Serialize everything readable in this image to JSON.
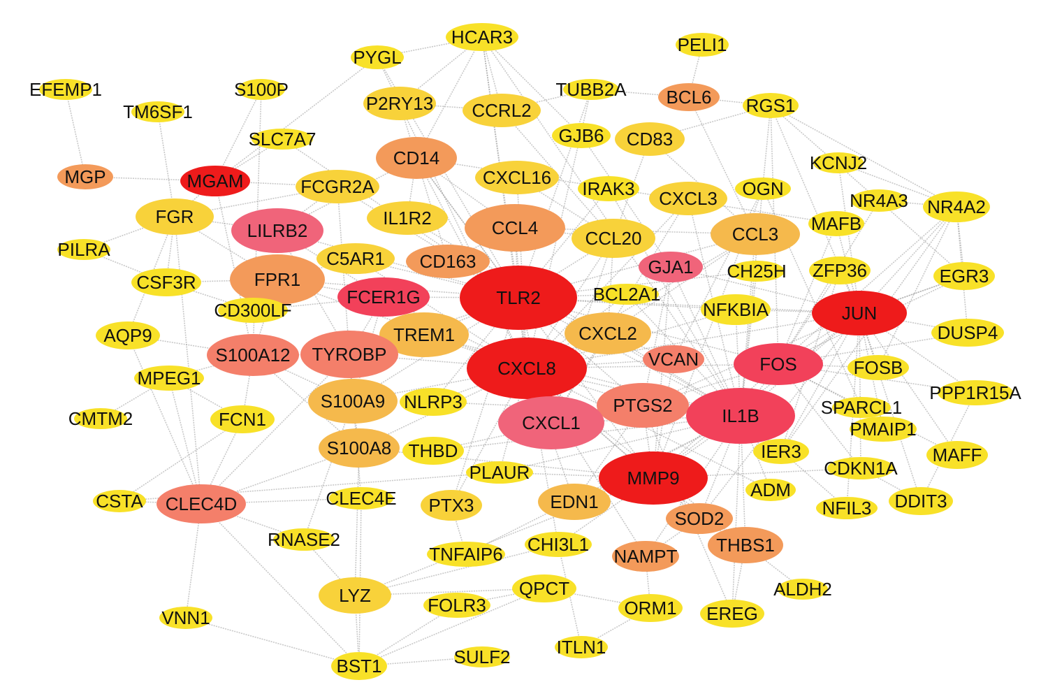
{
  "palette": {
    "level1": "#ee1b1b",
    "level2": "#f2415a",
    "level3": "#f0647a",
    "level4": "#f47f6a",
    "level5": "#f39a5a",
    "level6": "#f5b94c",
    "level7": "#f8d23a",
    "level8": "#f8e128",
    "edge": "#9a9a9a"
  },
  "nodes": [
    {
      "id": "HCAR3",
      "label": "HCAR3",
      "level": 8
    },
    {
      "id": "PELI1",
      "label": "PELI1",
      "level": 8
    },
    {
      "id": "PYGL",
      "label": "PYGL",
      "level": 8
    },
    {
      "id": "EFEMP1",
      "label": "EFEMP1",
      "level": 8
    },
    {
      "id": "S100P",
      "label": "S100P",
      "level": 8
    },
    {
      "id": "TUBB2A",
      "label": "TUBB2A",
      "level": 8
    },
    {
      "id": "BCL6",
      "label": "BCL6",
      "level": 5
    },
    {
      "id": "TM6SF1",
      "label": "TM6SF1",
      "level": 8
    },
    {
      "id": "P2RY13",
      "label": "P2RY13",
      "level": 7
    },
    {
      "id": "CCRL2",
      "label": "CCRL2",
      "level": 7
    },
    {
      "id": "RGS1",
      "label": "RGS1",
      "level": 8
    },
    {
      "id": "SLC7A7",
      "label": "SLC7A7",
      "level": 8
    },
    {
      "id": "GJB6",
      "label": "GJB6",
      "level": 8
    },
    {
      "id": "CD83",
      "label": "CD83",
      "level": 7
    },
    {
      "id": "CD14",
      "label": "CD14",
      "level": 5
    },
    {
      "id": "KCNJ2",
      "label": "KCNJ2",
      "level": 8
    },
    {
      "id": "MGP",
      "label": "MGP",
      "level": 5
    },
    {
      "id": "MGAM",
      "label": "MGAM",
      "level": 1
    },
    {
      "id": "CXCL16",
      "label": "CXCL16",
      "level": 7
    },
    {
      "id": "FCGR2A",
      "label": "FCGR2A",
      "level": 7
    },
    {
      "id": "IRAK3",
      "label": "IRAK3",
      "level": 8
    },
    {
      "id": "CXCL3",
      "label": "CXCL3",
      "level": 7
    },
    {
      "id": "OGN",
      "label": "OGN",
      "level": 8
    },
    {
      "id": "NR4A3",
      "label": "NR4A3",
      "level": 8
    },
    {
      "id": "NR4A2",
      "label": "NR4A2",
      "level": 8
    },
    {
      "id": "FGR",
      "label": "FGR",
      "level": 7
    },
    {
      "id": "IL1R2",
      "label": "IL1R2",
      "level": 7
    },
    {
      "id": "CCL4",
      "label": "CCL4",
      "level": 5
    },
    {
      "id": "LILRB2",
      "label": "LILRB2",
      "level": 3
    },
    {
      "id": "CCL3",
      "label": "CCL3",
      "level": 6
    },
    {
      "id": "MAFB",
      "label": "MAFB",
      "level": 8
    },
    {
      "id": "CCL20",
      "label": "CCL20",
      "level": 7
    },
    {
      "id": "PILRA",
      "label": "PILRA",
      "level": 8
    },
    {
      "id": "C5AR1",
      "label": "C5AR1",
      "level": 7
    },
    {
      "id": "CD163",
      "label": "CD163",
      "level": 5
    },
    {
      "id": "GJA1",
      "label": "GJA1",
      "level": 3
    },
    {
      "id": "CH25H",
      "label": "CH25H",
      "level": 8
    },
    {
      "id": "ZFP36",
      "label": "ZFP36",
      "level": 8
    },
    {
      "id": "EGR3",
      "label": "EGR3",
      "level": 8
    },
    {
      "id": "FPR1",
      "label": "FPR1",
      "level": 5
    },
    {
      "id": "CSF3R",
      "label": "CSF3R",
      "level": 8
    },
    {
      "id": "FCER1G",
      "label": "FCER1G",
      "level": 2
    },
    {
      "id": "TLR2",
      "label": "TLR2",
      "level": 1
    },
    {
      "id": "BCL2A1",
      "label": "BCL2A1",
      "level": 8
    },
    {
      "id": "NFKBIA",
      "label": "NFKBIA",
      "level": 8
    },
    {
      "id": "JUN",
      "label": "JUN",
      "level": 1
    },
    {
      "id": "CD300LF",
      "label": "CD300LF",
      "level": 8
    },
    {
      "id": "AQP9",
      "label": "AQP9",
      "level": 8
    },
    {
      "id": "TREM1",
      "label": "TREM1",
      "level": 6
    },
    {
      "id": "CXCL2",
      "label": "CXCL2",
      "level": 6
    },
    {
      "id": "DUSP4",
      "label": "DUSP4",
      "level": 8
    },
    {
      "id": "S100A12",
      "label": "S100A12",
      "level": 4
    },
    {
      "id": "TYROBP",
      "label": "TYROBP",
      "level": 4
    },
    {
      "id": "VCAN",
      "label": "VCAN",
      "level": 4
    },
    {
      "id": "FOS",
      "label": "FOS",
      "level": 2
    },
    {
      "id": "CXCL8",
      "label": "CXCL8",
      "level": 1
    },
    {
      "id": "FOSB",
      "label": "FOSB",
      "level": 8
    },
    {
      "id": "MPEG1",
      "label": "MPEG1",
      "level": 8
    },
    {
      "id": "S100A9",
      "label": "S100A9",
      "level": 6
    },
    {
      "id": "NLRP3",
      "label": "NLRP3",
      "level": 8
    },
    {
      "id": "PTGS2",
      "label": "PTGS2",
      "level": 4
    },
    {
      "id": "PPP1R15A",
      "label": "PPP1R15A",
      "level": 8
    },
    {
      "id": "CMTM2",
      "label": "CMTM2",
      "level": 8
    },
    {
      "id": "FCN1",
      "label": "FCN1",
      "level": 8
    },
    {
      "id": "CXCL1",
      "label": "CXCL1",
      "level": 3
    },
    {
      "id": "IL1B",
      "label": "IL1B",
      "level": 2
    },
    {
      "id": "SPARCL1",
      "label": "SPARCL1",
      "level": 8
    },
    {
      "id": "PMAIP1",
      "label": "PMAIP1",
      "level": 8
    },
    {
      "id": "S100A8",
      "label": "S100A8",
      "level": 6
    },
    {
      "id": "THBD",
      "label": "THBD",
      "level": 8
    },
    {
      "id": "IER3",
      "label": "IER3",
      "level": 8
    },
    {
      "id": "MAFF",
      "label": "MAFF",
      "level": 8
    },
    {
      "id": "PLAUR",
      "label": "PLAUR",
      "level": 8
    },
    {
      "id": "MMP9",
      "label": "MMP9",
      "level": 1
    },
    {
      "id": "CDKN1A",
      "label": "CDKN1A",
      "level": 8
    },
    {
      "id": "ADM",
      "label": "ADM",
      "level": 8
    },
    {
      "id": "CSTA",
      "label": "CSTA",
      "level": 8
    },
    {
      "id": "CLEC4D",
      "label": "CLEC4D",
      "level": 4
    },
    {
      "id": "CLEC4E",
      "label": "CLEC4E",
      "level": 8
    },
    {
      "id": "PTX3",
      "label": "PTX3",
      "level": 7
    },
    {
      "id": "EDN1",
      "label": "EDN1",
      "level": 6
    },
    {
      "id": "SOD2",
      "label": "SOD2",
      "level": 5
    },
    {
      "id": "NFIL3",
      "label": "NFIL3",
      "level": 8
    },
    {
      "id": "DDIT3",
      "label": "DDIT3",
      "level": 8
    },
    {
      "id": "RNASE2",
      "label": "RNASE2",
      "level": 8
    },
    {
      "id": "CHI3L1",
      "label": "CHI3L1",
      "level": 8
    },
    {
      "id": "TNFAIP6",
      "label": "TNFAIP6",
      "level": 8
    },
    {
      "id": "NAMPT",
      "label": "NAMPT",
      "level": 5
    },
    {
      "id": "THBS1",
      "label": "THBS1",
      "level": 5
    },
    {
      "id": "ALDH2",
      "label": "ALDH2",
      "level": 8
    },
    {
      "id": "LYZ",
      "label": "LYZ",
      "level": 7
    },
    {
      "id": "QPCT",
      "label": "QPCT",
      "level": 8
    },
    {
      "id": "FOLR3",
      "label": "FOLR3",
      "level": 8
    },
    {
      "id": "ORM1",
      "label": "ORM1",
      "level": 8
    },
    {
      "id": "EREG",
      "label": "EREG",
      "level": 8
    },
    {
      "id": "VNN1",
      "label": "VNN1",
      "level": 8
    },
    {
      "id": "ITLN1",
      "label": "ITLN1",
      "level": 8
    },
    {
      "id": "SULF2",
      "label": "SULF2",
      "level": 8
    },
    {
      "id": "BST1",
      "label": "BST1",
      "level": 8
    }
  ],
  "edges": [
    [
      "EFEMP1",
      "MGP"
    ],
    [
      "MGP",
      "MGAM"
    ],
    [
      "PELI1",
      "BCL6"
    ],
    [
      "BCL6",
      "TUBB2A"
    ],
    [
      "BCL6",
      "RGS1"
    ],
    [
      "BCL6",
      "CCL3"
    ],
    [
      "HCAR3",
      "PYGL"
    ],
    [
      "HCAR3",
      "P2RY13"
    ],
    [
      "HCAR3",
      "CCRL2"
    ],
    [
      "HCAR3",
      "TLR2"
    ],
    [
      "HCAR3",
      "CXCL8"
    ],
    [
      "HCAR3",
      "CD14"
    ],
    [
      "HCAR3",
      "GJB6"
    ],
    [
      "HCAR3",
      "IL1B"
    ],
    [
      "PYGL",
      "TLR2"
    ],
    [
      "PYGL",
      "CXCL8"
    ],
    [
      "PYGL",
      "MGAM"
    ],
    [
      "S100P",
      "MGAM"
    ],
    [
      "S100P",
      "S100A12"
    ],
    [
      "TM6SF1",
      "FGR"
    ],
    [
      "TUBB2A",
      "CCRL2"
    ],
    [
      "TUBB2A",
      "TLR2"
    ],
    [
      "TUBB2A",
      "CXCL8"
    ],
    [
      "RGS1",
      "NR4A2"
    ],
    [
      "RGS1",
      "NR4A3"
    ],
    [
      "RGS1",
      "JUN"
    ],
    [
      "RGS1",
      "FOS"
    ],
    [
      "RGS1",
      "CD83"
    ],
    [
      "RGS1",
      "IL1B"
    ],
    [
      "KCNJ2",
      "NR4A2"
    ],
    [
      "KCNJ2",
      "JUN"
    ],
    [
      "OGN",
      "VCAN"
    ],
    [
      "OGN",
      "SPARCL1"
    ],
    [
      "OGN",
      "MMP9"
    ],
    [
      "NR4A3",
      "NR4A2"
    ],
    [
      "NR4A3",
      "FOS"
    ],
    [
      "NR4A3",
      "EGR3"
    ],
    [
      "NR4A2",
      "FOSB"
    ],
    [
      "NR4A2",
      "JUN"
    ],
    [
      "NR4A2",
      "FOS"
    ],
    [
      "NR4A2",
      "EGR3"
    ],
    [
      "NR4A2",
      "DUSP4"
    ],
    [
      "NR4A2",
      "IER3"
    ],
    [
      "MAFB",
      "JUN"
    ],
    [
      "MAFB",
      "CD14"
    ],
    [
      "MAFB",
      "FOS"
    ],
    [
      "ZFP36",
      "JUN"
    ],
    [
      "ZFP36",
      "FOS"
    ],
    [
      "ZFP36",
      "IER3"
    ],
    [
      "EGR3",
      "JUN"
    ],
    [
      "EGR3",
      "FOS"
    ],
    [
      "DUSP4",
      "JUN"
    ],
    [
      "DUSP4",
      "FOS"
    ],
    [
      "FOSB",
      "JUN"
    ],
    [
      "FOSB",
      "FOS"
    ],
    [
      "PPP1R15A",
      "JUN"
    ],
    [
      "PPP1R15A",
      "DDIT3"
    ],
    [
      "PPP1R15A",
      "FOS"
    ],
    [
      "SPARCL1",
      "FOS"
    ],
    [
      "PMAIP1",
      "JUN"
    ],
    [
      "MAFF",
      "JUN"
    ],
    [
      "MAFF",
      "FOS"
    ],
    [
      "CDKN1A",
      "JUN"
    ],
    [
      "CDKN1A",
      "FOS"
    ],
    [
      "CDKN1A",
      "MMP9"
    ],
    [
      "DDIT3",
      "JUN"
    ],
    [
      "DDIT3",
      "CDKN1A"
    ],
    [
      "NFIL3",
      "JUN"
    ],
    [
      "NFIL3",
      "IL1B"
    ],
    [
      "ADM",
      "IL1B"
    ],
    [
      "ADM",
      "CXCL8"
    ],
    [
      "IER3",
      "IL1B"
    ],
    [
      "IER3",
      "JUN"
    ],
    [
      "CH25H",
      "IL1B"
    ],
    [
      "CH25H",
      "TLR2"
    ],
    [
      "GJA1",
      "IL1B"
    ],
    [
      "GJA1",
      "JUN"
    ],
    [
      "GJA1",
      "MMP9"
    ],
    [
      "GJA1",
      "PTGS2"
    ],
    [
      "NFKBIA",
      "IL1B"
    ],
    [
      "NFKBIA",
      "JUN"
    ],
    [
      "NFKBIA",
      "TLR2"
    ],
    [
      "NFKBIA",
      "CXCL8"
    ],
    [
      "TLR2",
      "CXCL8"
    ],
    [
      "TLR2",
      "IL1B"
    ],
    [
      "TLR2",
      "MMP9"
    ],
    [
      "TLR2",
      "CD14"
    ],
    [
      "TLR2",
      "TYROBP"
    ],
    [
      "TLR2",
      "FCER1G"
    ],
    [
      "TLR2",
      "CCL4"
    ],
    [
      "TLR2",
      "CXCL1"
    ],
    [
      "TLR2",
      "PTGS2"
    ],
    [
      "TLR2",
      "JUN"
    ],
    [
      "TLR2",
      "FOS"
    ],
    [
      "TLR2",
      "LILRB2"
    ],
    [
      "TLR2",
      "FPR1"
    ],
    [
      "TLR2",
      "CCL3"
    ],
    [
      "TLR2",
      "CCL20"
    ],
    [
      "CXCL8",
      "IL1B"
    ],
    [
      "CXCL8",
      "MMP9"
    ],
    [
      "CXCL8",
      "CXCL1"
    ],
    [
      "CXCL8",
      "PTGS2"
    ],
    [
      "CXCL8",
      "FOS"
    ],
    [
      "CXCL8",
      "JUN"
    ],
    [
      "CXCL8",
      "CCL4"
    ],
    [
      "CXCL8",
      "CXCL2"
    ],
    [
      "CXCL8",
      "FPR1"
    ],
    [
      "CXCL8",
      "S100A8"
    ],
    [
      "CXCL8",
      "S100A9"
    ],
    [
      "CXCL8",
      "TREM1"
    ],
    [
      "CXCL8",
      "CCL20"
    ],
    [
      "CXCL8",
      "CXCL3"
    ],
    [
      "CXCL8",
      "NLRP3"
    ],
    [
      "IL1B",
      "MMP9"
    ],
    [
      "IL1B",
      "PTGS2"
    ],
    [
      "IL1B",
      "FOS"
    ],
    [
      "IL1B",
      "JUN"
    ],
    [
      "IL1B",
      "CXCL1"
    ],
    [
      "IL1B",
      "SOD2"
    ],
    [
      "IL1B",
      "THBS1"
    ],
    [
      "IL1B",
      "EDN1"
    ],
    [
      "MMP9",
      "PTGS2"
    ],
    [
      "MMP9",
      "FOS"
    ],
    [
      "MMP9",
      "JUN"
    ],
    [
      "MMP9",
      "VCAN"
    ],
    [
      "MMP9",
      "THBS1"
    ],
    [
      "MMP9",
      "CHI3L1"
    ],
    [
      "MMP9",
      "LYZ"
    ],
    [
      "MMP9",
      "S100A8"
    ],
    [
      "FOS",
      "JUN"
    ],
    [
      "PTGS2",
      "FOS"
    ],
    [
      "PTGS2",
      "JUN"
    ],
    [
      "CXCL1",
      "CXCL2"
    ],
    [
      "CXCL1",
      "CXCL3"
    ],
    [
      "CXCL1",
      "CCL20"
    ],
    [
      "LILRB2",
      "FCER1G"
    ],
    [
      "LILRB2",
      "TYROBP"
    ],
    [
      "LILRB2",
      "FGR"
    ],
    [
      "LILRB2",
      "FCGR2A"
    ],
    [
      "LILRB2",
      "CD14"
    ],
    [
      "FPR1",
      "FCER1G"
    ],
    [
      "FPR1",
      "C5AR1"
    ],
    [
      "FPR1",
      "CSF3R"
    ],
    [
      "FPR1",
      "S100A12"
    ],
    [
      "FPR1",
      "FGR"
    ],
    [
      "FPR1",
      "CD300LF"
    ],
    [
      "TYROBP",
      "FCER1G"
    ],
    [
      "TYROBP",
      "TREM1"
    ],
    [
      "TYROBP",
      "S100A12"
    ],
    [
      "TYROBP",
      "S100A9"
    ],
    [
      "TYROBP",
      "CLEC4D"
    ],
    [
      "TYROBP",
      "CLEC4E"
    ],
    [
      "TYROBP",
      "FCGR2A"
    ],
    [
      "S100A12",
      "S100A8"
    ],
    [
      "S100A12",
      "S100A9"
    ],
    [
      "S100A12",
      "AQP9"
    ],
    [
      "S100A12",
      "MPEG1"
    ],
    [
      "S100A9",
      "S100A8"
    ],
    [
      "S100A8",
      "LYZ"
    ],
    [
      "S100A8",
      "CLEC4D"
    ],
    [
      "CLEC4D",
      "CLEC4E"
    ],
    [
      "CLEC4D",
      "CSTA"
    ],
    [
      "CLEC4D",
      "VNN1"
    ],
    [
      "CLEC4D",
      "RNASE2"
    ],
    [
      "CLEC4D",
      "FCN1"
    ],
    [
      "CLEC4D",
      "BST1"
    ],
    [
      "CLEC4D",
      "MPEG1"
    ],
    [
      "CLEC4D",
      "AQP9"
    ],
    [
      "CLEC4D",
      "FGR"
    ],
    [
      "CSTA",
      "FCN1"
    ],
    [
      "CSTA",
      "PLAUR"
    ],
    [
      "RNASE2",
      "LYZ"
    ],
    [
      "RNASE2",
      "S100A9"
    ],
    [
      "LYZ",
      "BST1"
    ],
    [
      "LYZ",
      "QPCT"
    ],
    [
      "LYZ",
      "CHI3L1"
    ],
    [
      "BST1",
      "SULF2"
    ],
    [
      "BST1",
      "QPCT"
    ],
    [
      "BST1",
      "VNN1"
    ],
    [
      "BST1",
      "FOLR3"
    ],
    [
      "BST1",
      "CLEC4E"
    ],
    [
      "FOLR3",
      "QPCT"
    ],
    [
      "QPCT",
      "ORM1"
    ],
    [
      "ORM1",
      "NAMPT"
    ],
    [
      "EREG",
      "THBS1"
    ],
    [
      "EREG",
      "IL1B"
    ],
    [
      "EREG",
      "PTGS2"
    ],
    [
      "ITLN1",
      "ORM1"
    ],
    [
      "ITLN1",
      "CHI3L1"
    ],
    [
      "THBS1",
      "SOD2"
    ],
    [
      "ALDH2",
      "THBS1"
    ],
    [
      "NAMPT",
      "SOD2"
    ],
    [
      "NAMPT",
      "IL1B"
    ],
    [
      "NAMPT",
      "CXCL8"
    ],
    [
      "TNFAIP6",
      "PTX3"
    ],
    [
      "TNFAIP6",
      "IL1B"
    ],
    [
      "PTX3",
      "CXCL8"
    ],
    [
      "PTX3",
      "TLR2"
    ],
    [
      "EDN1",
      "CXCL8"
    ],
    [
      "EDN1",
      "PTGS2"
    ],
    [
      "CHI3L1",
      "CXCL8"
    ],
    [
      "PLAUR",
      "CXCL8"
    ],
    [
      "PLAUR",
      "IL1B"
    ],
    [
      "PLAUR",
      "MMP9"
    ],
    [
      "THBD",
      "IL1B"
    ],
    [
      "THBD",
      "PTGS2"
    ],
    [
      "NLRP3",
      "IL1B"
    ],
    [
      "NLRP3",
      "TLR2"
    ],
    [
      "CMTM2",
      "MPEG1"
    ],
    [
      "PILRA",
      "CSF3R"
    ],
    [
      "PILRA",
      "FGR"
    ],
    [
      "CSF3R",
      "FGR"
    ],
    [
      "AQP9",
      "FGR"
    ],
    [
      "CSF3R",
      "CD300LF"
    ],
    [
      "FGR",
      "FCGR2A"
    ],
    [
      "FGR",
      "MGAM"
    ],
    [
      "MGAM",
      "FCGR2A"
    ],
    [
      "MGAM",
      "SLC7A7"
    ],
    [
      "MGAM",
      "S100A12"
    ],
    [
      "CD14",
      "TLR2"
    ],
    [
      "CD14",
      "CD163"
    ],
    [
      "CD14",
      "CCL4"
    ],
    [
      "CD14",
      "IL1R2"
    ],
    [
      "CD163",
      "TLR2"
    ],
    [
      "CD163",
      "CCL4"
    ],
    [
      "IL1R2",
      "IL1B"
    ],
    [
      "CXCL16",
      "CXCL8"
    ],
    [
      "CXCL16",
      "CCL20"
    ],
    [
      "IRAK3",
      "TLR2"
    ],
    [
      "IRAK3",
      "IL1B"
    ],
    [
      "CD83",
      "CCL3"
    ],
    [
      "CD83",
      "CCL20"
    ],
    [
      "CCL4",
      "CCL3"
    ],
    [
      "CCL4",
      "CCL20"
    ],
    [
      "CCL3",
      "IL1B"
    ],
    [
      "CCL3",
      "CXCL2"
    ],
    [
      "CCL20",
      "CXCL2"
    ],
    [
      "P2RY13",
      "CD14"
    ],
    [
      "P2RY13",
      "CCRL2"
    ],
    [
      "CCRL2",
      "CCL20"
    ],
    [
      "GJB6",
      "GJA1"
    ],
    [
      "BCL2A1",
      "TLR2"
    ],
    [
      "BCL2A1",
      "CXCL8"
    ],
    [
      "BCL2A1",
      "IL1B"
    ],
    [
      "VCAN",
      "CXCL8"
    ],
    [
      "VCAN",
      "TLR2"
    ],
    [
      "TREM1",
      "TLR2"
    ],
    [
      "TREM1",
      "IL1B"
    ],
    [
      "C5AR1",
      "TLR2"
    ],
    [
      "C5AR1",
      "CXCL8"
    ],
    [
      "FCER1G",
      "CXCL8"
    ],
    [
      "FCER1G",
      "S100A9"
    ],
    [
      "CD300LF",
      "FCER1G"
    ],
    [
      "MPEG1",
      "FCN1"
    ],
    [
      "FCN1",
      "S100A12"
    ],
    [
      "SLC7A7",
      "TLR2"
    ],
    [
      "FCGR2A",
      "TLR2"
    ],
    [
      "S100A9",
      "TLR2"
    ],
    [
      "TYROBP",
      "CXCL8"
    ],
    [
      "SOD2",
      "CXCL8"
    ],
    [
      "THBS1",
      "CXCL8"
    ],
    [
      "CXCL2",
      "IL1B"
    ],
    [
      "CXCL3",
      "IL1B"
    ],
    [
      "CCL3",
      "CXCL8"
    ],
    [
      "CD14",
      "CXCL8"
    ],
    [
      "JUN",
      "EGR3"
    ],
    [
      "SOD2",
      "JUN"
    ]
  ]
}
